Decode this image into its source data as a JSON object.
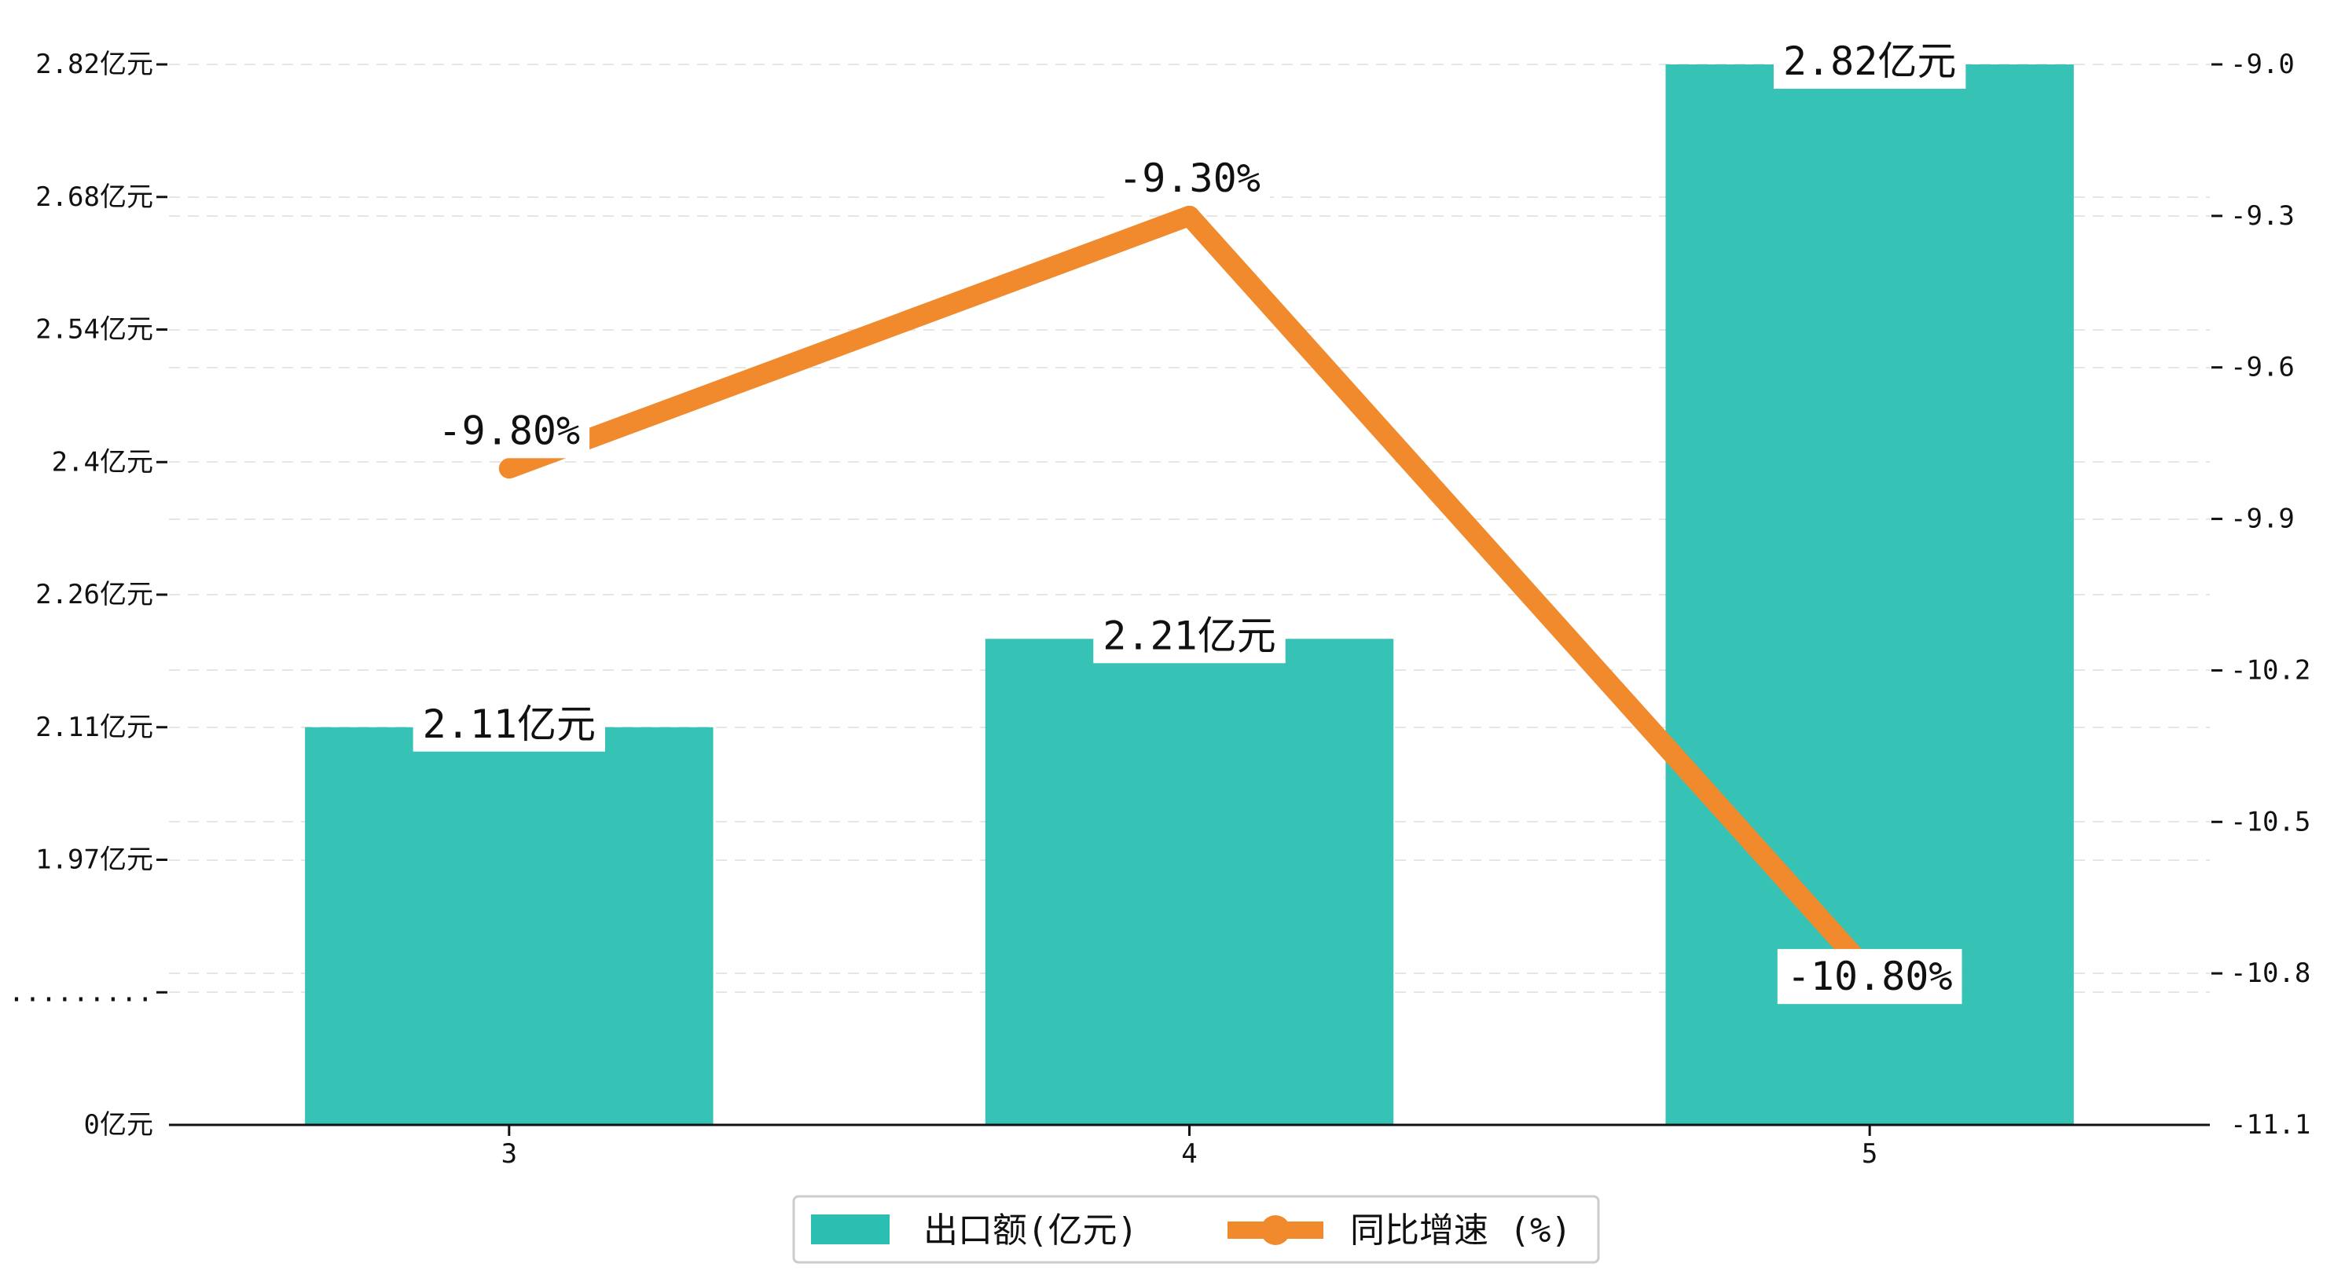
{
  "chart_data": {
    "type": "bar",
    "categories": [
      "3",
      "4",
      "5"
    ],
    "series": [
      {
        "name": "出口额(亿元)",
        "type": "bar",
        "axis": "left",
        "values": [
          2.11,
          2.21,
          2.82
        ],
        "labels": [
          "2.11亿元",
          "2.21亿元",
          "2.82亿元"
        ],
        "color": "#2bbfb1"
      },
      {
        "name": "同比增速 (%)",
        "type": "line",
        "axis": "right",
        "values": [
          -9.8,
          -9.3,
          -10.8
        ],
        "labels": [
          "-9.80%",
          "-9.30%",
          "-10.80%"
        ],
        "color": "#f08a2c"
      }
    ],
    "y_left": {
      "ticks": [
        0,
        1.82,
        1.97,
        2.11,
        2.26,
        2.4,
        2.54,
        2.68,
        2.82
      ],
      "tick_labels": [
        "0亿元",
        ".........",
        "1.97亿元",
        "2.11亿元",
        "2.26亿元",
        "2.4亿元",
        "2.54亿元",
        "2.68亿元",
        "2.82亿元"
      ],
      "broken_axis": true,
      "break_at": 1.82
    },
    "y_right": {
      "range": [
        -11.1,
        -9.0
      ],
      "ticks": [
        -11.1,
        -10.8,
        -10.5,
        -10.2,
        -9.9,
        -9.6,
        -9.3,
        -9.0
      ],
      "tick_labels": [
        "-11.1",
        "-10.8",
        "-10.5",
        "-10.2",
        "-9.9",
        "-9.6",
        "-9.3",
        "-9.0"
      ]
    },
    "grid": "horizontal-dashed",
    "legend": "bottom-center"
  }
}
